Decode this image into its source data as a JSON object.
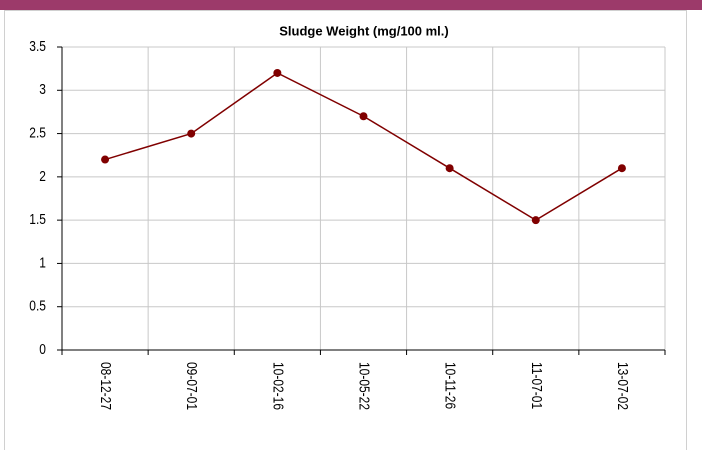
{
  "chart_data": {
    "type": "line",
    "title": "Sludge Weight (mg/100 ml.)",
    "categories": [
      "08-12-27",
      "09-07-01",
      "10-02-16",
      "10-05-22",
      "10-11-26",
      "11-07-01",
      "13-07-02"
    ],
    "series": [
      {
        "name": "Sludge Weight",
        "color": "#800000",
        "values": [
          2.2,
          2.5,
          3.2,
          2.7,
          2.1,
          1.5,
          2.1
        ]
      }
    ],
    "ylim": [
      0,
      3.5
    ],
    "yticks": [
      0,
      0.5,
      1,
      1.5,
      2,
      2.5,
      3,
      3.5
    ],
    "grid": true
  }
}
